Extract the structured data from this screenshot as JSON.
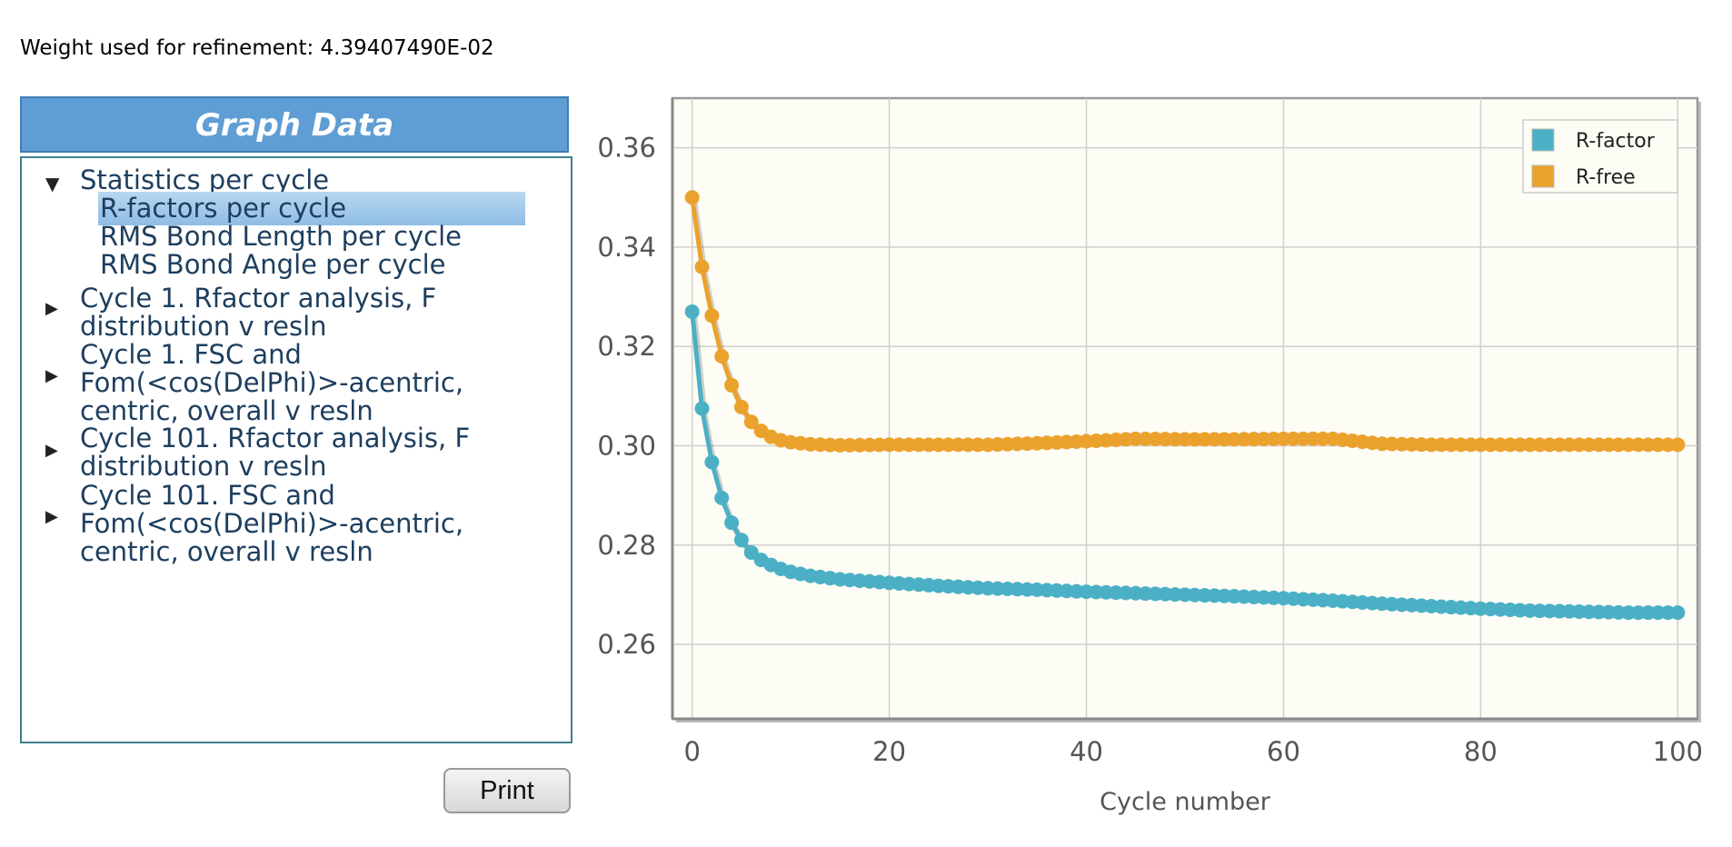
{
  "weight_text": "Weight used for refinement: 4.39407490E-02",
  "panel": {
    "header": "Graph Data",
    "tree": [
      {
        "label": "Statistics per cycle",
        "expanded": true,
        "children": [
          "R-factors per cycle",
          "RMS Bond Length per cycle",
          "RMS Bond Angle per cycle"
        ],
        "selected_child": "R-factors per cycle"
      },
      {
        "label_lines": [
          "Cycle 1. Rfactor analysis, F",
          "distribution v resln"
        ],
        "expanded": false
      },
      {
        "label_lines": [
          "Cycle 1. FSC and",
          "Fom(<cos(DelPhi)>-acentric,",
          "centric, overall v resln"
        ],
        "expanded": false
      },
      {
        "label_lines": [
          "Cycle 101. Rfactor analysis, F",
          "distribution v resln"
        ],
        "expanded": false
      },
      {
        "label_lines": [
          "Cycle 101. FSC and",
          "Fom(<cos(DelPhi)>-acentric,",
          "centric, overall v resln"
        ],
        "expanded": false
      }
    ]
  },
  "print_label": "Print",
  "colors": {
    "r_factor": "#4bb0c6",
    "r_free": "#eba22d",
    "plot_bg": "#fdfcf5",
    "grid": "#d0d0d0"
  },
  "chart_data": {
    "type": "line",
    "title": "",
    "xlabel": "Cycle number",
    "ylabel": "",
    "xlim": [
      -2,
      102
    ],
    "ylim": [
      0.245,
      0.37
    ],
    "xticks": [
      0,
      20,
      40,
      60,
      80,
      100
    ],
    "yticks": [
      0.26,
      0.28,
      0.3,
      0.32,
      0.34,
      0.36
    ],
    "ytick_labels": [
      "0.26",
      "0.28",
      "0.30",
      "0.32",
      "0.34",
      "0.36"
    ],
    "legend_position": "top-right",
    "grid": true,
    "series": [
      {
        "name": "R-factor",
        "color": "#4bb0c6",
        "keypoints": [
          [
            0,
            0.327
          ],
          [
            1,
            0.3075
          ],
          [
            2,
            0.2967
          ],
          [
            3,
            0.2895
          ],
          [
            4,
            0.2845
          ],
          [
            5,
            0.281
          ],
          [
            6,
            0.2785
          ],
          [
            7,
            0.277
          ],
          [
            8,
            0.276
          ],
          [
            9,
            0.2752
          ],
          [
            10,
            0.2746
          ],
          [
            12,
            0.2738
          ],
          [
            15,
            0.2731
          ],
          [
            20,
            0.2724
          ],
          [
            25,
            0.2718
          ],
          [
            30,
            0.2713
          ],
          [
            35,
            0.271
          ],
          [
            40,
            0.2706
          ],
          [
            45,
            0.2703
          ],
          [
            50,
            0.27
          ],
          [
            55,
            0.2697
          ],
          [
            60,
            0.2693
          ],
          [
            65,
            0.2688
          ],
          [
            70,
            0.2682
          ],
          [
            75,
            0.2677
          ],
          [
            80,
            0.2672
          ],
          [
            85,
            0.2668
          ],
          [
            90,
            0.2666
          ],
          [
            95,
            0.2664
          ],
          [
            100,
            0.2664
          ]
        ]
      },
      {
        "name": "R-free",
        "color": "#eba22d",
        "keypoints": [
          [
            0,
            0.35
          ],
          [
            1,
            0.336
          ],
          [
            2,
            0.3262
          ],
          [
            3,
            0.318
          ],
          [
            4,
            0.3122
          ],
          [
            5,
            0.3078
          ],
          [
            6,
            0.3048
          ],
          [
            7,
            0.303
          ],
          [
            8,
            0.3018
          ],
          [
            9,
            0.3011
          ],
          [
            10,
            0.3007
          ],
          [
            12,
            0.3003
          ],
          [
            15,
            0.3001
          ],
          [
            20,
            0.3002
          ],
          [
            30,
            0.3002
          ],
          [
            35,
            0.3005
          ],
          [
            40,
            0.3009
          ],
          [
            45,
            0.3014
          ],
          [
            50,
            0.3013
          ],
          [
            55,
            0.3013
          ],
          [
            60,
            0.3014
          ],
          [
            65,
            0.3014
          ],
          [
            70,
            0.3004
          ],
          [
            75,
            0.3002
          ],
          [
            80,
            0.3002
          ],
          [
            90,
            0.3002
          ],
          [
            100,
            0.3002
          ]
        ]
      }
    ]
  }
}
